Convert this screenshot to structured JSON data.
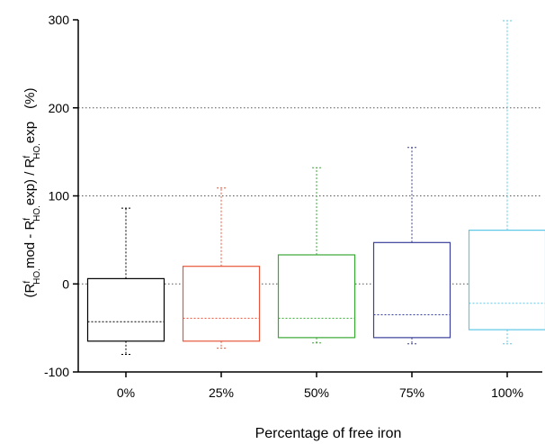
{
  "chart_data": {
    "type": "box",
    "xlabel": "Percentage of free iron",
    "ylabel_parts": {
      "open": "(R",
      "sup1": "f",
      "sub1": "HO.",
      "mid1": "mod - R",
      "sup2": "f",
      "sub2": "HO.",
      "mid2": "exp) / R",
      "sup3": "f",
      "sub3": "HO.",
      "end": "exp",
      "unit": "(%)"
    },
    "ylim": [
      -100,
      300
    ],
    "yticks": [
      -100,
      0,
      100,
      200,
      300
    ],
    "gridlines": [
      0,
      100,
      200
    ],
    "categories": [
      "0%",
      "25%",
      "50%",
      "75%",
      "100%"
    ],
    "boxes": [
      {
        "category": "0%",
        "whisker_low": -80,
        "q1": -65,
        "median": -43,
        "q3": 6,
        "whisker_high": 86,
        "color": "#000000"
      },
      {
        "category": "25%",
        "whisker_low": -73,
        "q1": -65,
        "median": -39,
        "q3": 20,
        "whisker_high": 109,
        "color": "#e8553a"
      },
      {
        "category": "50%",
        "whisker_low": -67,
        "q1": -61,
        "median": -39,
        "q3": 33,
        "whisker_high": 132,
        "color": "#3aa835"
      },
      {
        "category": "75%",
        "whisker_low": -68,
        "q1": -61,
        "median": -35,
        "q3": 47,
        "whisker_high": 155,
        "color": "#3a3f9a"
      },
      {
        "category": "100%",
        "whisker_low": -68,
        "q1": -52,
        "median": -22,
        "q3": 61,
        "whisker_high": 299,
        "color": "#5cc7e6"
      }
    ]
  }
}
